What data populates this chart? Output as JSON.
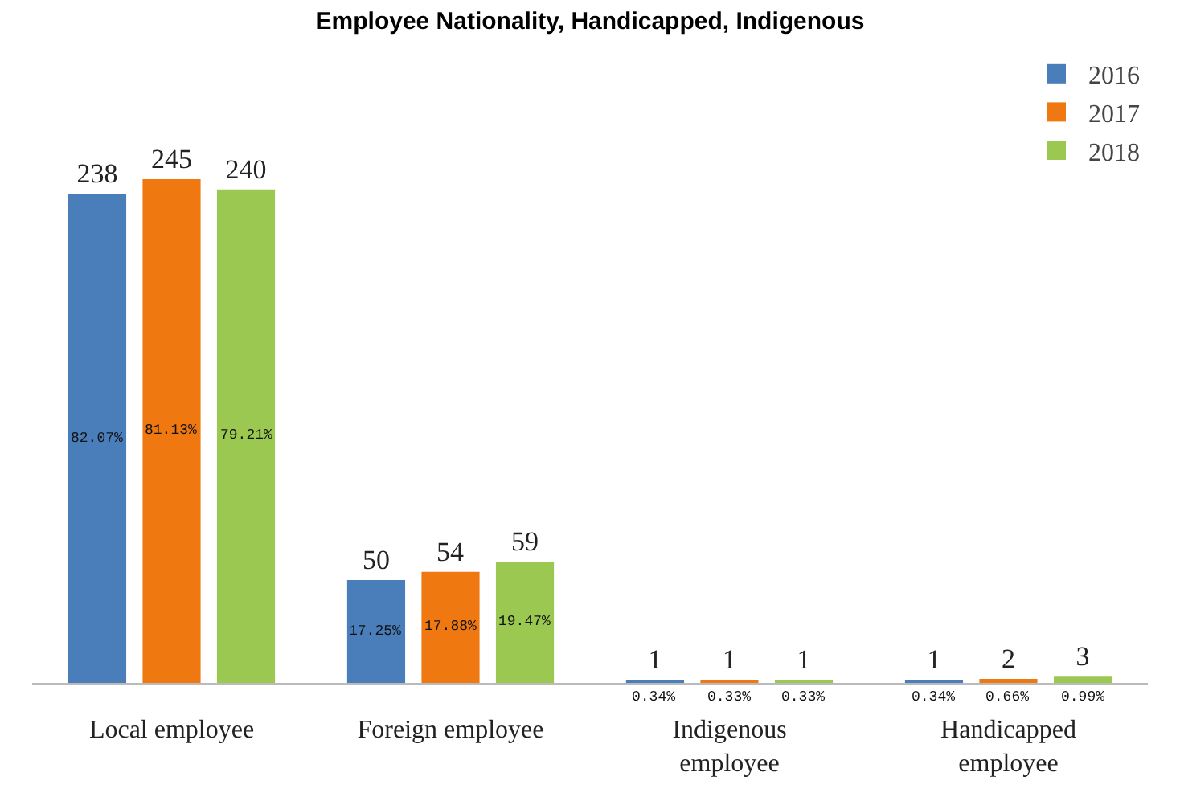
{
  "chart_data": {
    "type": "bar",
    "title": "Employee Nationality, Handicapped, Indigenous",
    "categories": [
      "Local employee",
      "Foreign employee",
      "Indigenous employee",
      "Handicapped employee"
    ],
    "series": [
      {
        "name": "2016",
        "color": "#4a7ebb",
        "values": [
          238,
          50,
          1,
          1
        ]
      },
      {
        "name": "2017",
        "color": "#f07810",
        "values": [
          245,
          54,
          1,
          2
        ]
      },
      {
        "name": "2018",
        "color": "#9bc850",
        "values": [
          240,
          59,
          1,
          3
        ]
      }
    ],
    "data_labels": true,
    "legend": "top right",
    "grid": false,
    "annotations": [
      "82.07%",
      "81.13%",
      "79.21%",
      "17.25%",
      "17.88%",
      "19.47%",
      "0.34%",
      "0.33%",
      "0.33%",
      "0.34%",
      "0.66%",
      "0.99%"
    ]
  }
}
